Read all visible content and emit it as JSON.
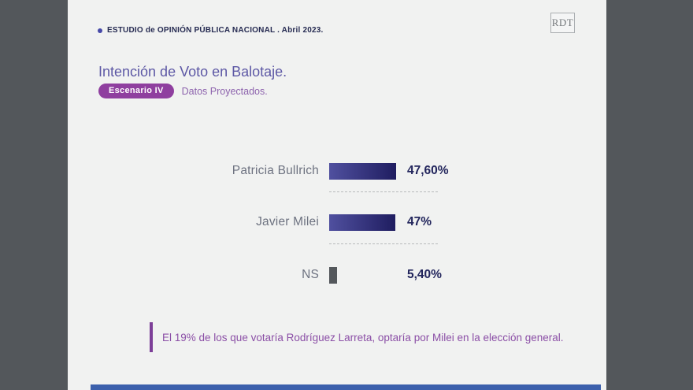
{
  "header": {
    "study_label": "ESTUDIO de OPINIÓN PÚBLICA NACIONAL . Abril 2023.",
    "logo_text": "RDT"
  },
  "title": {
    "text": "Intención de Voto en Balotaje.",
    "badge": "Escenario IV",
    "tagline": "Datos Proyectados."
  },
  "chart_data": {
    "type": "bar",
    "orientation": "horizontal",
    "title": "Intención de Voto en Balotaje.",
    "subtitle": "Escenario IV - Datos Proyectados.",
    "categories": [
      "Patricia Bullrich",
      "Javier Milei",
      "NS"
    ],
    "values": [
      47.6,
      47,
      5.4
    ],
    "value_labels": [
      "47,60%",
      "47%",
      "5,40%"
    ],
    "xlim": [
      0,
      100
    ],
    "grid": false,
    "legend": false,
    "bar_styles": [
      "indigo-gradient",
      "indigo-gradient",
      "solid-gray"
    ]
  },
  "annotation": {
    "text": "El 19% de los que votaría Rodríguez Larreta, optaría por Milei en la elección general."
  },
  "colors": {
    "outer_background": "#53575b",
    "card_background": "#f1f2f1",
    "header_navy": "#262b52",
    "title_purple": "#5d58a5",
    "badge_purple": "#8f3f9f",
    "bar_gradient_start": "#50509f",
    "bar_gradient_end": "#1f1d60",
    "ns_bar_gray": "#54585c",
    "value_navy": "#22255c",
    "annotation_purple": "#8b4fa6",
    "footer_blue": "#3c60ac"
  }
}
